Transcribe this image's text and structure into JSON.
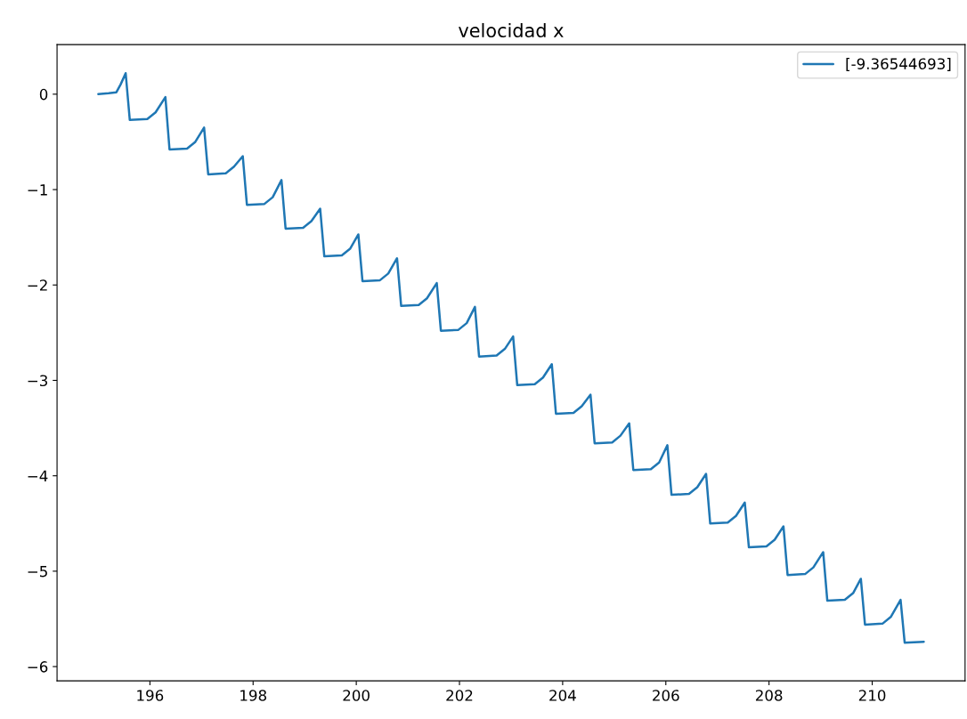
{
  "chart_data": {
    "type": "line",
    "title": "velocidad x",
    "xlim": [
      194.2,
      211.8
    ],
    "xticks": [
      196,
      198,
      200,
      202,
      204,
      206,
      208,
      210
    ],
    "ylim": [
      -6.15,
      0.52
    ],
    "yticks": [
      {
        "value": -6,
        "label": "−6"
      },
      {
        "value": -5,
        "label": "−5"
      },
      {
        "value": -4,
        "label": "−4"
      },
      {
        "value": -3,
        "label": "−3"
      },
      {
        "value": -2,
        "label": "−2"
      },
      {
        "value": -1,
        "label": "−1"
      },
      0
    ],
    "legend": "top right",
    "grid": false,
    "line_style": "solid",
    "series": [
      {
        "name": "[-9.36544693]",
        "color": "#1f77b4",
        "x": [
          195.0,
          195.2,
          195.35,
          195.43,
          195.53,
          195.61,
          195.95,
          196.11,
          196.3,
          196.38,
          196.72,
          196.88,
          197.05,
          197.13,
          197.47,
          197.63,
          197.8,
          197.88,
          198.22,
          198.38,
          198.55,
          198.63,
          198.97,
          199.13,
          199.3,
          199.38,
          199.72,
          199.88,
          200.04,
          200.12,
          200.46,
          200.62,
          200.79,
          200.87,
          201.21,
          201.37,
          201.56,
          201.64,
          201.98,
          202.14,
          202.3,
          202.38,
          202.72,
          202.88,
          203.04,
          203.12,
          203.46,
          203.62,
          203.79,
          203.87,
          204.21,
          204.37,
          204.54,
          204.62,
          204.96,
          205.12,
          205.29,
          205.37,
          205.71,
          205.87,
          206.03,
          206.11,
          206.45,
          206.61,
          206.78,
          206.86,
          207.2,
          207.36,
          207.53,
          207.61,
          207.95,
          208.11,
          208.28,
          208.36,
          208.7,
          208.86,
          209.05,
          209.13,
          209.47,
          209.63,
          209.78,
          209.86,
          210.2,
          210.36,
          210.55,
          210.63,
          211.0
        ],
        "values": [
          0.0,
          0.01,
          0.02,
          0.1,
          0.22,
          -0.27,
          -0.26,
          -0.19,
          -0.03,
          -0.58,
          -0.57,
          -0.5,
          -0.35,
          -0.84,
          -0.83,
          -0.76,
          -0.65,
          -1.16,
          -1.15,
          -1.08,
          -0.9,
          -1.41,
          -1.4,
          -1.33,
          -1.2,
          -1.7,
          -1.69,
          -1.62,
          -1.47,
          -1.96,
          -1.95,
          -1.88,
          -1.72,
          -2.22,
          -2.21,
          -2.14,
          -1.98,
          -2.48,
          -2.47,
          -2.4,
          -2.23,
          -2.75,
          -2.74,
          -2.67,
          -2.54,
          -3.05,
          -3.04,
          -2.97,
          -2.83,
          -3.35,
          -3.34,
          -3.27,
          -3.15,
          -3.66,
          -3.65,
          -3.58,
          -3.45,
          -3.94,
          -3.93,
          -3.86,
          -3.68,
          -4.2,
          -4.19,
          -4.12,
          -3.98,
          -4.5,
          -4.49,
          -4.42,
          -4.28,
          -4.75,
          -4.74,
          -4.67,
          -4.53,
          -5.04,
          -5.03,
          -4.96,
          -4.8,
          -5.31,
          -5.3,
          -5.23,
          -5.08,
          -5.56,
          -5.55,
          -5.48,
          -5.3,
          -5.75,
          -5.74
        ]
      }
    ]
  }
}
